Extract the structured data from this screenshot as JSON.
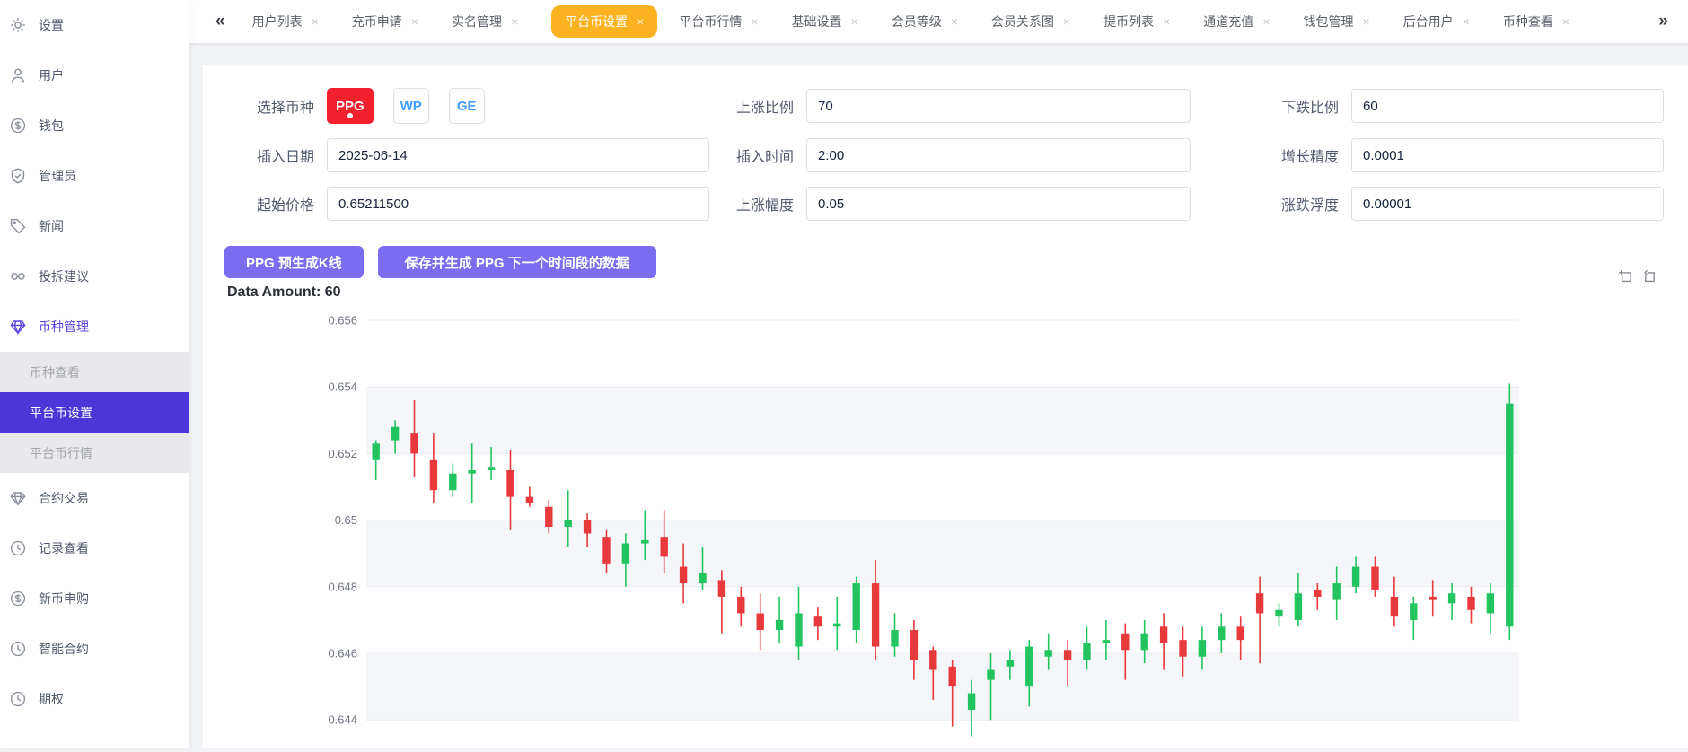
{
  "colors": {
    "active_tab_bg": "#fcb322",
    "active_menu_bg": "#4d36d8",
    "menu_accent": "#5b43e0",
    "coin_selected_bg": "#f3212d",
    "coin_link_text": "#409eff",
    "action_button_bg": "#7b6cf0",
    "candle_up": "#21c45f",
    "candle_down": "#e8393c"
  },
  "sidebar": {
    "items": [
      {
        "label": "设置",
        "icon": "gear"
      },
      {
        "label": "用户",
        "icon": "user"
      },
      {
        "label": "钱包",
        "icon": "dollar"
      },
      {
        "label": "管理员",
        "icon": "shield"
      },
      {
        "label": "新闻",
        "icon": "tag"
      },
      {
        "label": "投拆建议",
        "icon": "link"
      },
      {
        "label": "币种管理",
        "icon": "diamond",
        "active": true,
        "children": [
          {
            "label": "币种查看"
          },
          {
            "label": "平台币设置",
            "active": true
          },
          {
            "label": "平台币行情"
          }
        ]
      },
      {
        "label": "合约交易",
        "icon": "diamond"
      },
      {
        "label": "记录查看",
        "icon": "clock"
      },
      {
        "label": "新币申购",
        "icon": "dollar"
      },
      {
        "label": "智能合约",
        "icon": "clock"
      },
      {
        "label": "期权",
        "icon": "clock"
      }
    ]
  },
  "tabbar": {
    "scroll_left": "«",
    "scroll_right": "»",
    "close_glyph": "×",
    "tabs": [
      {
        "label": "用户列表"
      },
      {
        "label": "充币申请"
      },
      {
        "label": "实名管理"
      },
      {
        "label": "平台币设置",
        "active": true
      },
      {
        "label": "平台币行情"
      },
      {
        "label": "基础设置"
      },
      {
        "label": "会员等级"
      },
      {
        "label": "会员关系图"
      },
      {
        "label": "提币列表"
      },
      {
        "label": "通道充值"
      },
      {
        "label": "钱包管理"
      },
      {
        "label": "后台用户"
      },
      {
        "label": "币种查看"
      }
    ]
  },
  "form": {
    "coin_label": "选择币种",
    "coins": [
      {
        "label": "PPG",
        "selected": true
      },
      {
        "label": "WP",
        "selected": false
      },
      {
        "label": "GE",
        "selected": false
      }
    ],
    "fields": {
      "rise_ratio": {
        "label": "上涨比例",
        "value": "70"
      },
      "fall_ratio": {
        "label": "下跌比例",
        "value": "60"
      },
      "insert_date": {
        "label": "插入日期",
        "value": "2025-06-14"
      },
      "insert_time": {
        "label": "插入时间",
        "value": "2:00"
      },
      "growth_precision": {
        "label": "增长精度",
        "value": "0.0001"
      },
      "start_price": {
        "label": "起始价格",
        "value": "0.65211500"
      },
      "rise_amplitude": {
        "label": "上涨幅度",
        "value": "0.05"
      },
      "fluctuation": {
        "label": "涨跌浮度",
        "value": "0.00001"
      }
    },
    "buttons": [
      {
        "label": "PPG 预生成K线"
      },
      {
        "label": "保存并生成 PPG 下一个时间段的数据"
      }
    ],
    "data_amount_label": "Data Amount: 60"
  },
  "toolbox_icons": [
    "zoom-box-icon",
    "restore-icon"
  ],
  "chart_data": {
    "type": "candlestick",
    "data_amount": 60,
    "y_tick_labels": [
      "0.656",
      "0.654",
      "0.652",
      "0.65",
      "0.648",
      "0.646",
      "0.644"
    ],
    "y_ticks": [
      0.656,
      0.654,
      0.652,
      0.65,
      0.648,
      0.646,
      0.644
    ],
    "ylim_top": 0.656,
    "grid": true,
    "split_area": true,
    "up_color": "#21c45f",
    "down_color": "#e8393c",
    "ohlc_format": [
      "open",
      "close",
      "low",
      "high"
    ],
    "ohlc": [
      [
        0.6518,
        0.6523,
        0.6512,
        0.6524
      ],
      [
        0.6524,
        0.6528,
        0.652,
        0.653
      ],
      [
        0.6526,
        0.652,
        0.6513,
        0.6536
      ],
      [
        0.6518,
        0.6509,
        0.6505,
        0.6526
      ],
      [
        0.6509,
        0.6514,
        0.6507,
        0.6517
      ],
      [
        0.6514,
        0.6515,
        0.6505,
        0.6523
      ],
      [
        0.6515,
        0.6516,
        0.6512,
        0.6522
      ],
      [
        0.6515,
        0.6507,
        0.6497,
        0.6521
      ],
      [
        0.6507,
        0.6505,
        0.6504,
        0.651
      ],
      [
        0.6504,
        0.6498,
        0.6496,
        0.6506
      ],
      [
        0.6498,
        0.65,
        0.6492,
        0.6509
      ],
      [
        0.65,
        0.6496,
        0.6492,
        0.6502
      ],
      [
        0.6495,
        0.6487,
        0.6484,
        0.6497
      ],
      [
        0.6487,
        0.6493,
        0.648,
        0.6496
      ],
      [
        0.6493,
        0.6494,
        0.6488,
        0.6503
      ],
      [
        0.6495,
        0.6489,
        0.6484,
        0.6503
      ],
      [
        0.6486,
        0.6481,
        0.6475,
        0.6493
      ],
      [
        0.6481,
        0.6484,
        0.6479,
        0.6492
      ],
      [
        0.6482,
        0.6477,
        0.6466,
        0.6485
      ],
      [
        0.6477,
        0.6472,
        0.6468,
        0.648
      ],
      [
        0.6472,
        0.6467,
        0.6461,
        0.6478
      ],
      [
        0.6467,
        0.647,
        0.6463,
        0.6477
      ],
      [
        0.6462,
        0.6472,
        0.6458,
        0.648
      ],
      [
        0.6471,
        0.6468,
        0.6464,
        0.6474
      ],
      [
        0.6468,
        0.6469,
        0.6461,
        0.6477
      ],
      [
        0.6467,
        0.6481,
        0.6463,
        0.6483
      ],
      [
        0.6481,
        0.6462,
        0.6458,
        0.6488
      ],
      [
        0.6462,
        0.6467,
        0.6459,
        0.6472
      ],
      [
        0.6467,
        0.6458,
        0.6452,
        0.647
      ],
      [
        0.6461,
        0.6455,
        0.6446,
        0.6462
      ],
      [
        0.6456,
        0.645,
        0.6438,
        0.6458
      ],
      [
        0.6443,
        0.6448,
        0.6435,
        0.6452
      ],
      [
        0.6452,
        0.6455,
        0.644,
        0.646
      ],
      [
        0.6456,
        0.6458,
        0.6452,
        0.6461
      ],
      [
        0.645,
        0.6462,
        0.6444,
        0.6464
      ],
      [
        0.6459,
        0.6461,
        0.6455,
        0.6466
      ],
      [
        0.6461,
        0.6458,
        0.645,
        0.6464
      ],
      [
        0.6458,
        0.6463,
        0.6455,
        0.6468
      ],
      [
        0.6463,
        0.6464,
        0.6458,
        0.647
      ],
      [
        0.6466,
        0.6461,
        0.6452,
        0.6469
      ],
      [
        0.6461,
        0.6466,
        0.6457,
        0.647
      ],
      [
        0.6468,
        0.6463,
        0.6455,
        0.6472
      ],
      [
        0.6464,
        0.6459,
        0.6453,
        0.6468
      ],
      [
        0.6459,
        0.6464,
        0.6455,
        0.6468
      ],
      [
        0.6464,
        0.6468,
        0.646,
        0.6472
      ],
      [
        0.6468,
        0.6464,
        0.6458,
        0.6471
      ],
      [
        0.6478,
        0.6472,
        0.6457,
        0.6483
      ],
      [
        0.6471,
        0.6473,
        0.6468,
        0.6475
      ],
      [
        0.647,
        0.6478,
        0.6468,
        0.6484
      ],
      [
        0.6479,
        0.6477,
        0.6473,
        0.6481
      ],
      [
        0.6476,
        0.6481,
        0.647,
        0.6486
      ],
      [
        0.648,
        0.6486,
        0.6478,
        0.6489
      ],
      [
        0.6486,
        0.6479,
        0.6477,
        0.6489
      ],
      [
        0.6477,
        0.6471,
        0.6468,
        0.6483
      ],
      [
        0.647,
        0.6475,
        0.6464,
        0.6477
      ],
      [
        0.6477,
        0.6476,
        0.6471,
        0.6482
      ],
      [
        0.6475,
        0.6478,
        0.647,
        0.6481
      ],
      [
        0.6477,
        0.6473,
        0.6469,
        0.648
      ],
      [
        0.6472,
        0.6478,
        0.6466,
        0.6481
      ],
      [
        0.6468,
        0.6535,
        0.6464,
        0.6541
      ]
    ]
  }
}
